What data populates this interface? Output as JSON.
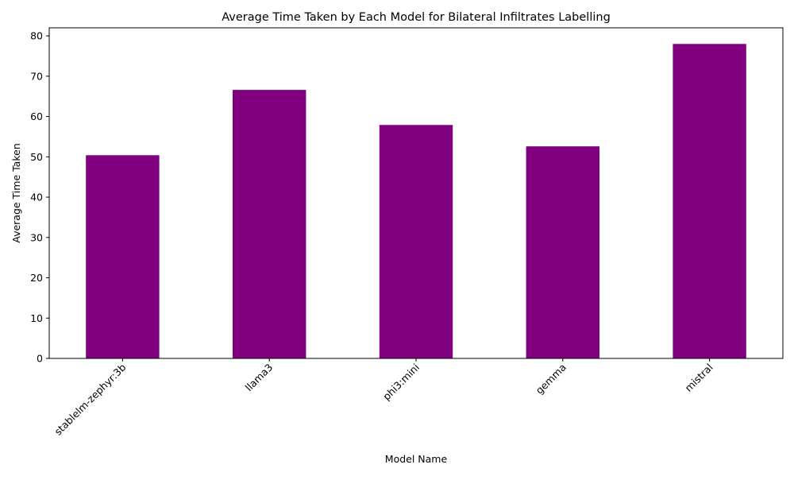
{
  "chart_data": {
    "type": "bar",
    "title": "Average Time Taken by Each Model for Bilateral Infiltrates Labelling",
    "xlabel": "Model Name",
    "ylabel": "Average Time Taken",
    "categories": [
      "stablelm-zephyr:3b",
      "llama3",
      "phi3:mini",
      "gemma",
      "mistral"
    ],
    "values": [
      50.4,
      66.6,
      57.9,
      52.6,
      78.0
    ],
    "ylim": [
      0,
      82
    ],
    "yticks": [
      "0",
      "10",
      "20",
      "30",
      "40",
      "50",
      "60",
      "70",
      "80"
    ],
    "bar_color": "#800080",
    "grid": false,
    "legend": false
  }
}
